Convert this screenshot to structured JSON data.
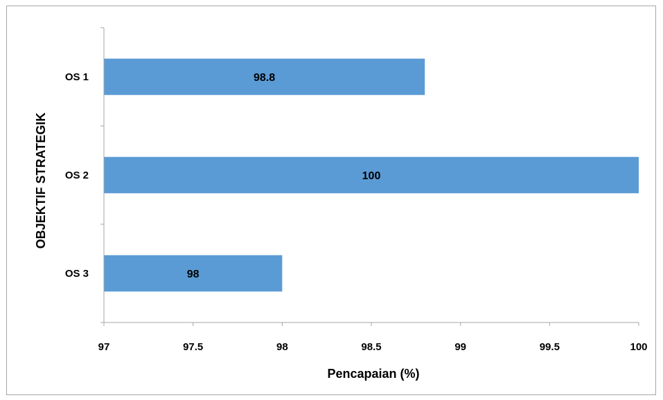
{
  "chart_data": {
    "type": "bar",
    "orientation": "horizontal",
    "categories": [
      "OS 1",
      "OS 2",
      "OS 3"
    ],
    "values": [
      98.8,
      100,
      98
    ],
    "data_labels": [
      "98.8",
      "100",
      "98"
    ],
    "xlabel": "Pencapaian (%)",
    "ylabel": "OBJEKTIF STRATEGIK",
    "xlim": [
      97,
      100
    ],
    "xticks": [
      "97",
      "97.5",
      "98",
      "98.5",
      "99",
      "99.5",
      "100"
    ],
    "grid": false,
    "legend": "none",
    "bar_color": "#5b9bd5",
    "axis_color": "#a6a6a6"
  }
}
